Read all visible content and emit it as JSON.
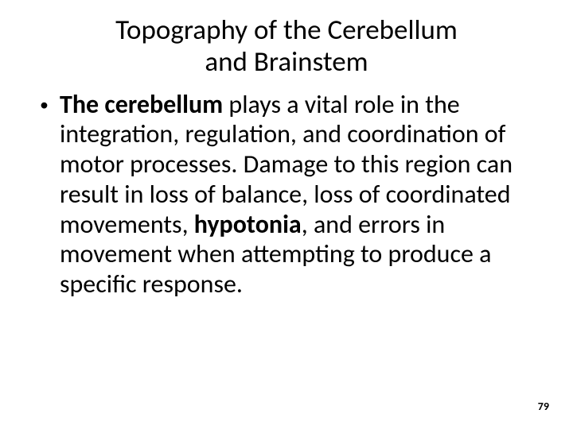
{
  "title_line1": "Topography of the Cerebellum",
  "title_line2": "and Brainstem",
  "bullet_dot": "•",
  "body_b1": "The cerebellum",
  "body_t1": " plays a vital role in the integration, regulation, and coordination of motor processes. Damage to this region can result in loss of balance, loss of coordinated movements, ",
  "body_b2": "hypotonia",
  "body_t2": ", and errors in movement when attempting to produce a specific response.",
  "page_number": "79"
}
